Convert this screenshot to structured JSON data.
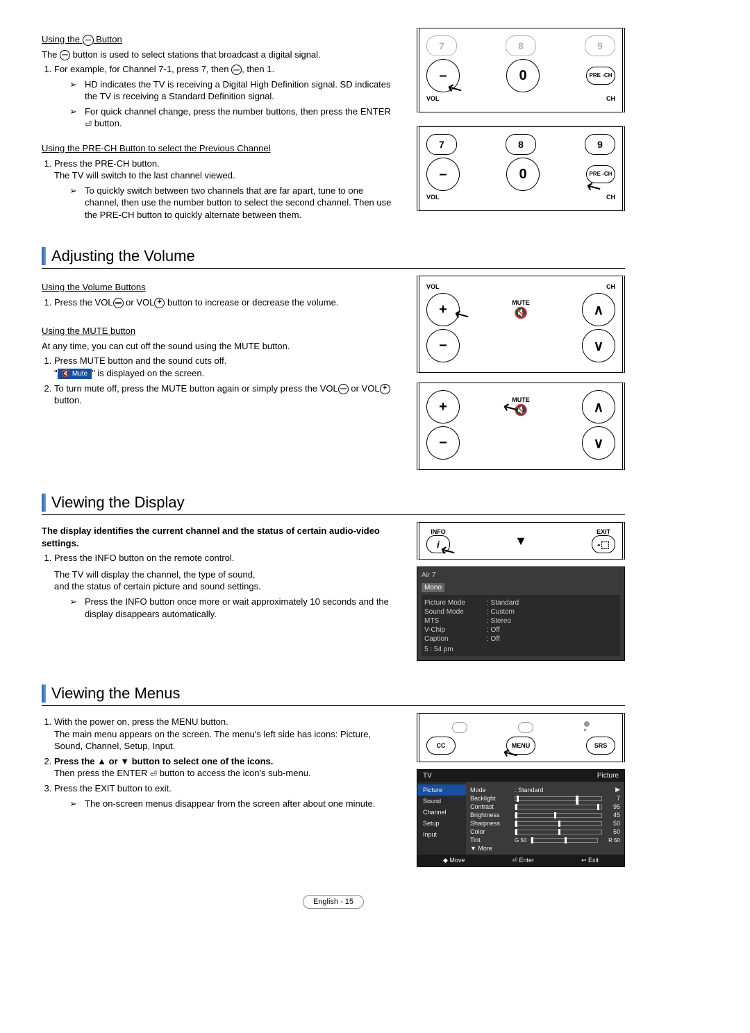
{
  "section1": {
    "sub1_title_pre": "Using the",
    "sub1_title_post": "Button",
    "intro_pre": "The",
    "intro_post": "button is used to select stations that broadcast a digital signal.",
    "step1_pre": "For example, for Channel 7-1, press 7, then",
    "step1_post": ", then 1.",
    "note1": "HD indicates the TV is receiving a Digital High Definition signal. SD indicates the TV is receiving a Standard Definition signal.",
    "note2_pre": "For quick channel change, press the number buttons, then press the ENTER",
    "note2_post": "button.",
    "sub2_title": "Using the PRE-CH Button to select the Previous Channel",
    "step2a": "Press the PRE-CH button.",
    "step2b": "The TV will switch to the last channel viewed.",
    "note3": "To quickly switch between two channels that are far apart, tune to one channel, then use the number button to select the second channel. Then use the PRE-CH button to quickly alternate between them."
  },
  "section2": {
    "title": "Adjusting the Volume",
    "sub1": "Using the Volume Buttons",
    "step1_pre": "Press the VOL",
    "step1_mid": "or VOL",
    "step1_post": "button to increase or decrease the volume.",
    "sub2": "Using the MUTE button",
    "intro": "At any time, you can cut off the sound using the MUTE button.",
    "step2a": "Press MUTE button and the sound cuts off.",
    "step2b_pre": "\"",
    "step2b_chip": "Mute",
    "step2b_post": "\" is displayed on the screen.",
    "step3_pre": "To turn mute off, press the MUTE button again or simply press the VOL",
    "step3_mid": "or VOL",
    "step3_post": "button."
  },
  "section3": {
    "title": "Viewing the Display",
    "bold": "The display identifies the current channel and the status of certain audio-video settings.",
    "step1": "Press the INFO button on the remote control.",
    "desc1": "The TV will display the channel, the type of sound,",
    "desc2": "and the status of certain picture and sound settings.",
    "note": "Press the INFO button once more or wait approximately 10 seconds and the display disappears automatically."
  },
  "section4": {
    "title": "Viewing the Menus",
    "step1a": "With the power on, press the MENU button.",
    "step1b": "The main menu appears on the screen. The menu's left side has icons: Picture, Sound, Channel, Setup, Input.",
    "step2a": "Press the ▲ or ▼ button to select one of the icons.",
    "step2b_pre": "Then press the ENTER",
    "step2b_post": "button to access the icon's sub-menu.",
    "step3": "Press the EXIT button to exit.",
    "note": "The on-screen menus disappear from the screen after about one minute."
  },
  "remote": {
    "nums_top": [
      "7",
      "8",
      "9"
    ],
    "zero": "0",
    "dash": "–",
    "prech": "PRE\n-CH",
    "vol": "VOL",
    "ch": "CH",
    "mute": "MUTE",
    "info": "INFO",
    "exit": "EXIT",
    "cc": "CC",
    "menu": "MENU",
    "srs": "SRS"
  },
  "osd_info": {
    "ch": "Air 7",
    "mono": "Mono",
    "rows": [
      [
        "Picture Mode",
        ": Standard"
      ],
      [
        "Sound Mode",
        ": Custom"
      ],
      [
        "MTS",
        ": Stereo"
      ],
      [
        "V-Chip",
        ": Off"
      ],
      [
        "Caption",
        ": Off"
      ]
    ],
    "time": "5 : 54 pm"
  },
  "osd_menu": {
    "hdr_l": "TV",
    "hdr_r": "Picture",
    "side": [
      "Picture",
      "Sound",
      "Channel",
      "Setup",
      "Input"
    ],
    "rows": [
      {
        "k": "Mode",
        "v": ": Standard",
        "t": "▶",
        "bar": false
      },
      {
        "k": "Backlight",
        "v": "7",
        "bar": true,
        "pos": 70
      },
      {
        "k": "Contrast",
        "v": "95",
        "bar": true,
        "pos": 95
      },
      {
        "k": "Brightness",
        "v": "45",
        "bar": true,
        "pos": 45
      },
      {
        "k": "Sharpness",
        "v": "50",
        "bar": true,
        "pos": 50
      },
      {
        "k": "Color",
        "v": "50",
        "bar": true,
        "pos": 50
      },
      {
        "k": "Tint",
        "v": "R 50",
        "pre": "G 50",
        "bar": true,
        "pos": 50
      }
    ],
    "more": "▼ More",
    "ftr": [
      "◆ Move",
      "⏎ Enter",
      "↩ Exit"
    ]
  },
  "footer": "English - 15"
}
